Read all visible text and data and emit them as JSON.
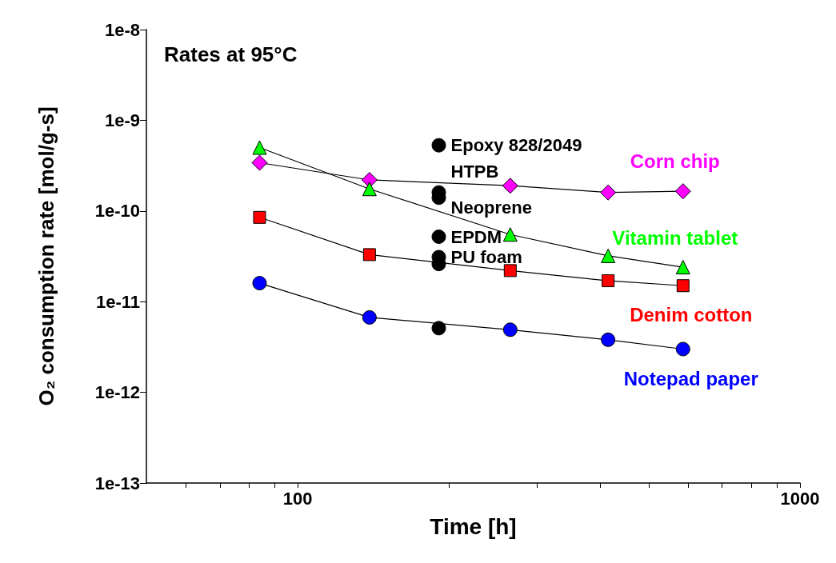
{
  "chart_data": {
    "type": "line",
    "title": "Rates at 95°C",
    "xlabel": "Time [h]",
    "ylabel": "O₂ consumption rate [mol/g-s]",
    "log": "xy",
    "grid": false,
    "legend": false,
    "line_style": "solid",
    "xlim": [
      50,
      1000
    ],
    "xticks": [
      {
        "value": 60,
        "label": null
      },
      {
        "value": 70,
        "label": null
      },
      {
        "value": 80,
        "label": null
      },
      {
        "value": 90,
        "label": null
      },
      100,
      {
        "value": 200,
        "label": null
      },
      {
        "value": 300,
        "label": null
      },
      {
        "value": 400,
        "label": null
      },
      {
        "value": 500,
        "label": null
      },
      {
        "value": 600,
        "label": null
      },
      {
        "value": 700,
        "label": null
      },
      {
        "value": 800,
        "label": null
      },
      {
        "value": 900,
        "label": null
      },
      1000
    ],
    "ylim": [
      1e-13,
      1e-08
    ],
    "yticks": [
      {
        "value": 1e-13,
        "label": "1e-13"
      },
      {
        "value": 1e-12,
        "label": "1e-12"
      },
      {
        "value": 1e-11,
        "label": "1e-11"
      },
      {
        "value": 1e-10,
        "label": "1e-10"
      },
      {
        "value": 1e-09,
        "label": "1e-9"
      },
      {
        "value": 1e-08,
        "label": "1e-8"
      }
    ],
    "series": [
      {
        "name": "Corn chip",
        "color": "#ff00ff",
        "marker": "diamond",
        "x": [
          84,
          139,
          265,
          415,
          585
        ],
        "values": [
          3.4e-10,
          2.2e-10,
          1.9e-10,
          1.6e-10,
          1.65e-10
        ]
      },
      {
        "name": "Vitamin tablet",
        "color": "#00ff00",
        "marker": "triangle",
        "x": [
          84,
          139,
          265,
          415,
          585
        ],
        "values": [
          5e-10,
          1.75e-10,
          5.5e-11,
          3.2e-11,
          2.4e-11
        ]
      },
      {
        "name": "Denim cotton",
        "color": "#ff0000",
        "marker": "square",
        "x": [
          84,
          139,
          265,
          415,
          585
        ],
        "values": [
          8.5e-11,
          3.3e-11,
          2.2e-11,
          1.7e-11,
          1.5e-11
        ]
      },
      {
        "name": "Notepad paper",
        "color": "#0000ff",
        "marker": "circle",
        "x": [
          84,
          139,
          265,
          415,
          585
        ],
        "values": [
          1.6e-11,
          6.7e-12,
          4.9e-12,
          3.8e-12,
          3e-12
        ]
      },
      {
        "name": "Epoxy 828/2049",
        "type": "scatter",
        "color": "#000000",
        "marker": "circle",
        "x": [
          191
        ],
        "values": [
          5.3e-10
        ]
      },
      {
        "name": "HTPB",
        "type": "scatter",
        "color": "#000000",
        "marker": "circle",
        "x": [
          191
        ],
        "values": [
          1.6e-10
        ]
      },
      {
        "name": "Neoprene",
        "type": "scatter",
        "color": "#000000",
        "marker": "circle",
        "x": [
          191
        ],
        "values": [
          1.4e-10
        ]
      },
      {
        "name": "EPDM",
        "type": "scatter",
        "color": "#000000",
        "marker": "circle",
        "x": [
          191
        ],
        "values": [
          5.2e-11
        ]
      },
      {
        "name": "PU foam",
        "type": "scatter",
        "color": "#000000",
        "marker": "circle",
        "x": [
          191
        ],
        "values": [
          3.1e-11
        ]
      },
      {
        "type": "scatter",
        "color": "#000000",
        "marker": "circle",
        "x": [
          191,
          191
        ],
        "values": [
          2.6e-11,
          5.1e-12
        ]
      }
    ]
  }
}
